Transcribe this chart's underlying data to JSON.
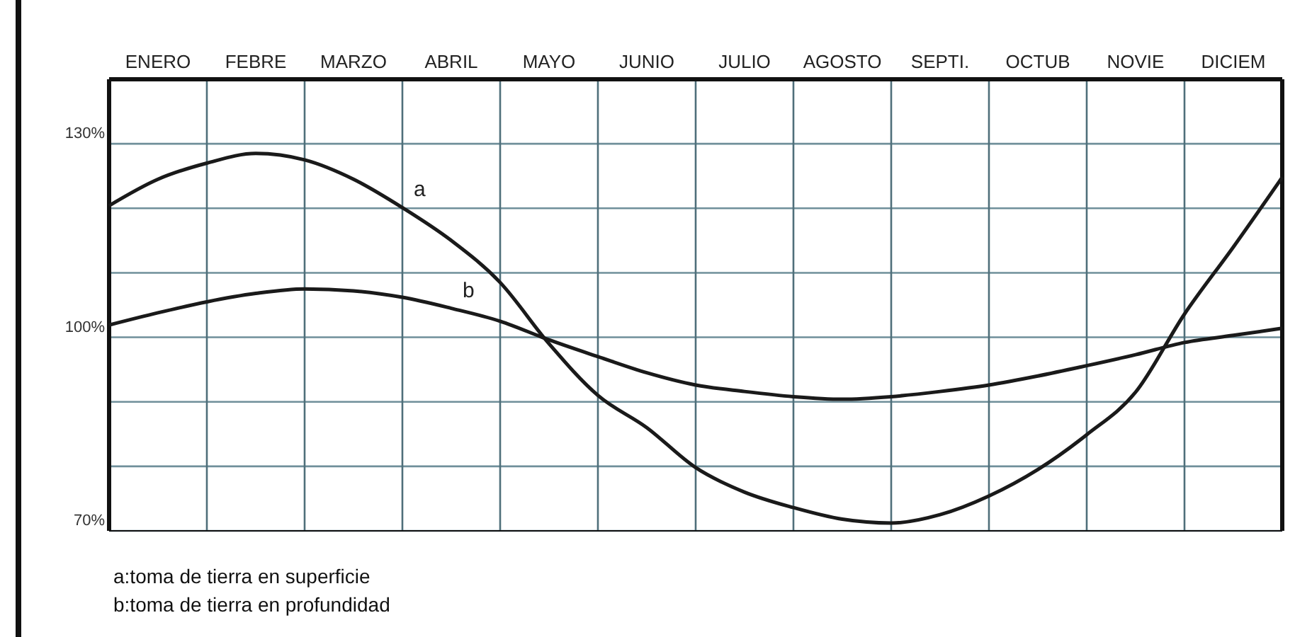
{
  "chart_data": {
    "type": "line",
    "categories": [
      null,
      "ENERO",
      null,
      "FEBRE",
      null,
      "MARZO",
      null,
      "ABRIL",
      null,
      "MAYO",
      null,
      "JUNIO",
      null,
      "JULIO",
      null,
      "AGOSTO",
      null,
      "SEPTI.",
      null,
      "OCTUB",
      null,
      "NOVIE",
      null,
      "DICIEM",
      null
    ],
    "ylim": [
      70,
      140
    ],
    "yticks": [
      {
        "value": 70,
        "label": "70%"
      },
      {
        "value": 80,
        "label": null
      },
      {
        "value": 90,
        "label": null
      },
      {
        "value": 100,
        "label": "100%"
      },
      {
        "value": 110,
        "label": null
      },
      {
        "value": 120,
        "label": null
      },
      {
        "value": 130,
        "label": "130%"
      },
      {
        "value": 140,
        "label": null
      }
    ],
    "grid": true,
    "marker": "none",
    "line_style": "solid",
    "series": [
      {
        "name": "a",
        "color": "#1a1a1a",
        "values": [
          120.4,
          124.5,
          127,
          128.5,
          127.5,
          124.5,
          120.1,
          115,
          108.5,
          99,
          91,
          86,
          79.8,
          76,
          73.6,
          71.8,
          71.2,
          72.5,
          75.4,
          79.5,
          84.9,
          91.5,
          103.6,
          114,
          124.8
        ]
      },
      {
        "name": "b",
        "color": "#1a1a1a",
        "values": [
          101.9,
          103.8,
          105.5,
          106.8,
          107.5,
          107.2,
          106.2,
          104.5,
          102.5,
          99.6,
          97,
          94.5,
          92.6,
          91.6,
          90.8,
          90.4,
          90.8,
          91.6,
          92.6,
          94,
          95.6,
          97.3,
          99.2,
          100.3,
          101.4
        ]
      }
    ],
    "annotations": [
      "a:toma de tierra en superficie",
      "b:toma de tierra en profundidad"
    ]
  }
}
